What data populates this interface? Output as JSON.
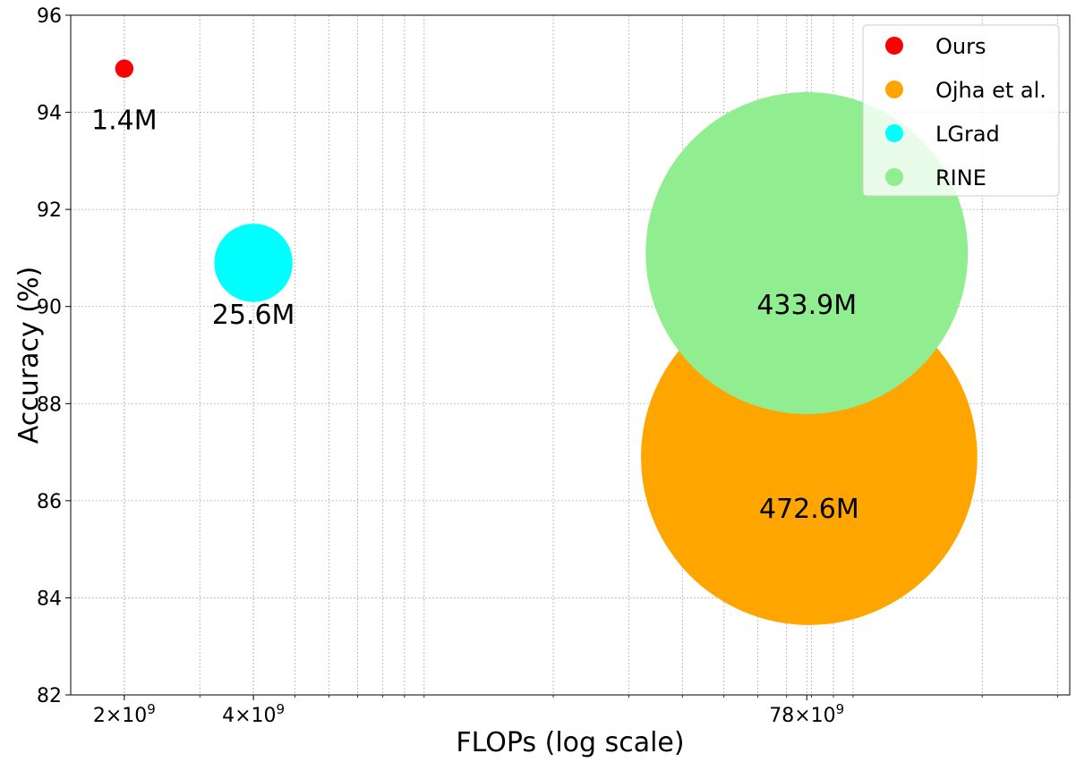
{
  "chart_data": {
    "type": "scatter",
    "xlabel": "FLOPs (log scale)",
    "ylabel": "Accuracy (%)",
    "x_scale": "log",
    "xlim": [
      1500000000,
      320000000000
    ],
    "ylim": [
      82,
      96
    ],
    "grid": true,
    "legend_position": "top-right",
    "y_ticks": [
      {
        "value": 82,
        "label": "82"
      },
      {
        "value": 84,
        "label": "84"
      },
      {
        "value": 86,
        "label": "86"
      },
      {
        "value": 88,
        "label": "88"
      },
      {
        "value": 90,
        "label": "90"
      },
      {
        "value": 92,
        "label": "92"
      },
      {
        "value": 94,
        "label": "94"
      },
      {
        "value": 96,
        "label": "96"
      }
    ],
    "x_ticks": [
      {
        "value": 2000000000,
        "mantissa": "2",
        "exponent": "9"
      },
      {
        "value": 4000000000,
        "mantissa": "4",
        "exponent": "9"
      },
      {
        "value": 78000000000,
        "mantissa": "78",
        "exponent": "9"
      }
    ],
    "size_unit": "M parameters",
    "series": [
      {
        "name": "Ours",
        "color": "#ff0000",
        "x": 2000000000,
        "y": 94.9,
        "size": 1.4,
        "label": "1.4M"
      },
      {
        "name": "Ojha et al.",
        "color": "#ffa500",
        "x": 79000000000,
        "y": 86.9,
        "size": 472.6,
        "label": "472.6M"
      },
      {
        "name": "LGrad",
        "color": "#00ffff",
        "x": 4000000000,
        "y": 90.9,
        "size": 25.6,
        "label": "25.6M"
      },
      {
        "name": "RINE",
        "color": "#90ee90",
        "x": 78000000000,
        "y": 91.1,
        "size": 433.9,
        "label": "433.9M"
      }
    ]
  }
}
